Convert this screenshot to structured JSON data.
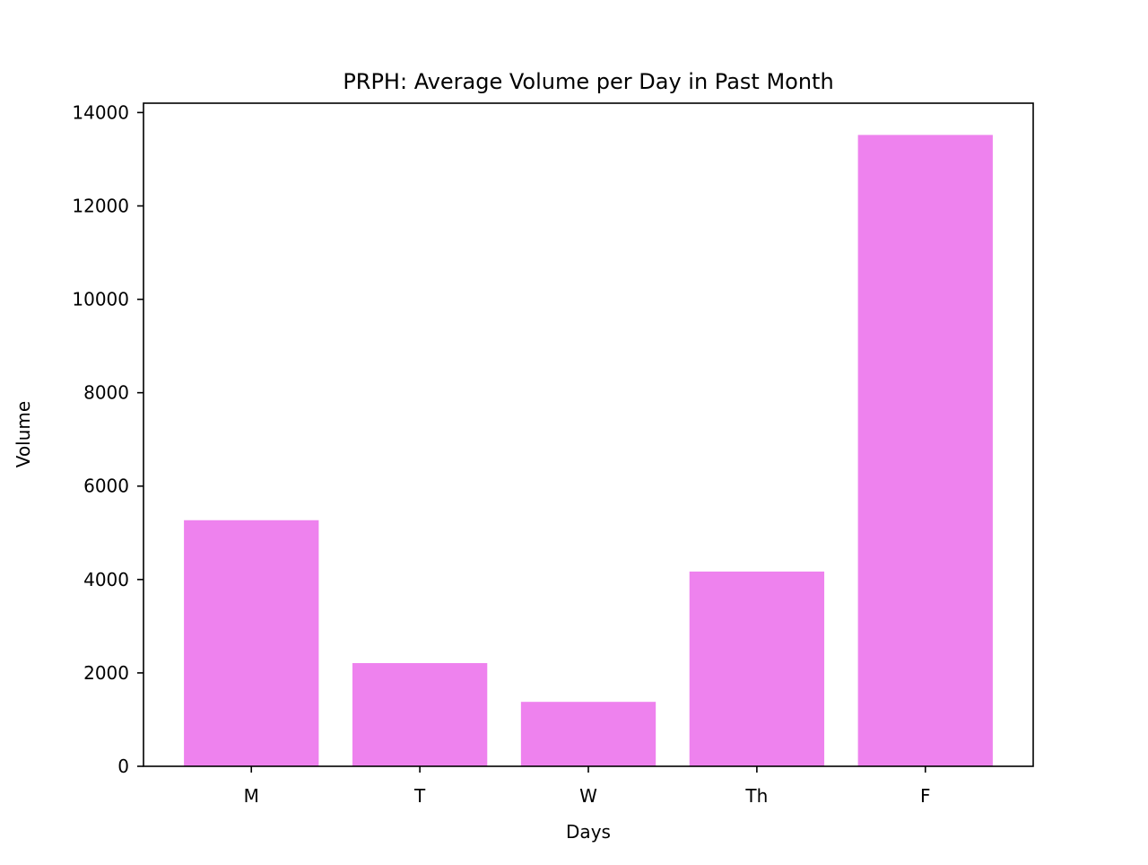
{
  "chart_data": {
    "type": "bar",
    "title": "PRPH: Average Volume per Day in Past Month",
    "xlabel": "Days",
    "ylabel": "Volume",
    "categories": [
      "M",
      "T",
      "W",
      "Th",
      "F"
    ],
    "values": [
      5270,
      2210,
      1380,
      4170,
      13520
    ],
    "ylim": [
      0,
      14200
    ],
    "yticks": [
      0,
      2000,
      4000,
      6000,
      8000,
      10000,
      12000,
      14000
    ],
    "bar_color": "#ee82ee",
    "grid": false,
    "legend": "none"
  }
}
